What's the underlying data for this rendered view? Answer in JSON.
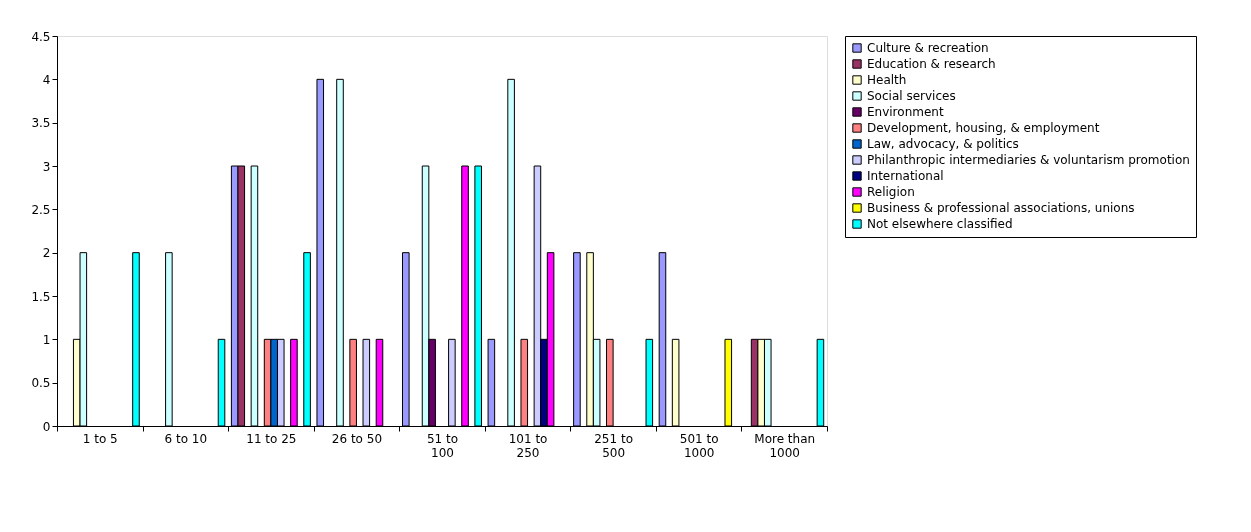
{
  "chart_data": {
    "type": "bar",
    "categories": [
      "1 to 5",
      "6 to 10",
      "11 to 25",
      "26 to 50",
      "51 to 100",
      "101 to 250",
      "251 to 500",
      "501 to 1000",
      "More than 1000"
    ],
    "ylim": [
      0,
      4.5
    ],
    "yticks": [
      0,
      0.5,
      1,
      1.5,
      2,
      2.5,
      3,
      3.5,
      4,
      4.5
    ],
    "grid": false,
    "legend": "top right",
    "series": [
      {
        "name": "Culture & recreation",
        "color": "#9999ff",
        "values": [
          null,
          null,
          3,
          4,
          2,
          1,
          2,
          2,
          null
        ]
      },
      {
        "name": "Education & research",
        "color": "#993366",
        "values": [
          null,
          null,
          3,
          null,
          null,
          null,
          null,
          null,
          1
        ]
      },
      {
        "name": "Health",
        "color": "#ffffcc",
        "values": [
          1,
          null,
          null,
          null,
          null,
          null,
          2,
          1,
          1
        ]
      },
      {
        "name": "Social services",
        "color": "#ccffff",
        "values": [
          2,
          2,
          3,
          4,
          3,
          4,
          1,
          null,
          1
        ]
      },
      {
        "name": "Environment",
        "color": "#660066",
        "values": [
          null,
          null,
          null,
          null,
          1,
          null,
          null,
          null,
          null
        ]
      },
      {
        "name": "Development, housing, & employment",
        "color": "#ff8080",
        "values": [
          null,
          null,
          1,
          1,
          null,
          1,
          1,
          null,
          null
        ]
      },
      {
        "name": "Law, advocacy, & politics",
        "color": "#0066cc",
        "values": [
          null,
          null,
          1,
          null,
          null,
          null,
          null,
          null,
          null
        ]
      },
      {
        "name": "Philanthropic intermediaries & voluntarism promotion",
        "color": "#ccccff",
        "values": [
          null,
          null,
          1,
          1,
          1,
          3,
          null,
          null,
          null
        ]
      },
      {
        "name": "International",
        "color": "#000080",
        "values": [
          null,
          null,
          null,
          null,
          null,
          1,
          null,
          null,
          null
        ]
      },
      {
        "name": "Religion",
        "color": "#ff00ff",
        "values": [
          null,
          null,
          1,
          1,
          3,
          2,
          null,
          null,
          null
        ]
      },
      {
        "name": "Business & professional associations, unions",
        "color": "#ffff00",
        "values": [
          null,
          null,
          null,
          null,
          null,
          null,
          null,
          1,
          null
        ]
      },
      {
        "name": "Not elsewhere classified",
        "color": "#00ffff",
        "values": [
          2,
          1,
          2,
          null,
          3,
          null,
          1,
          null,
          1
        ]
      }
    ]
  }
}
